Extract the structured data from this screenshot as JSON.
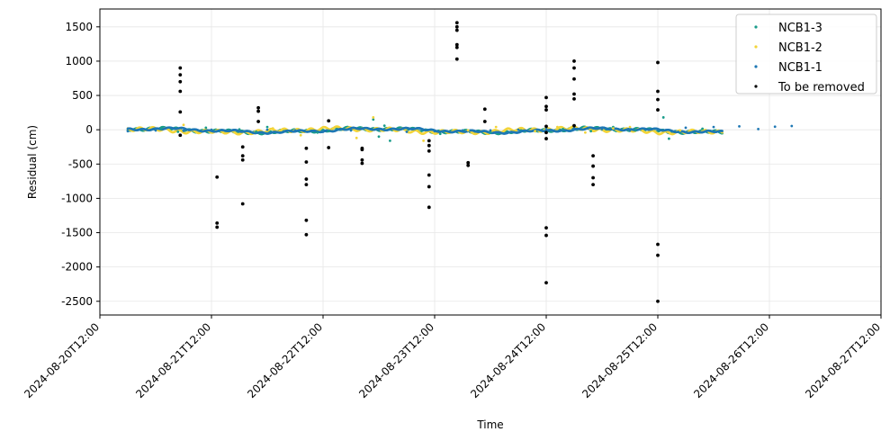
{
  "chart_data": {
    "type": "scatter",
    "title": "",
    "xlabel": "Time",
    "ylabel": "Residual (cm)",
    "x_ticks": [
      "2024-08-20T12:00",
      "2024-08-21T12:00",
      "2024-08-22T12:00",
      "2024-08-23T12:00",
      "2024-08-24T12:00",
      "2024-08-25T12:00",
      "2024-08-26T12:00",
      "2024-08-27T12:00"
    ],
    "y_ticks": [
      1500,
      1000,
      500,
      0,
      -500,
      -1000,
      -1500,
      -2000,
      -2500
    ],
    "xlim_days": [
      0,
      7
    ],
    "ylim": [
      -2700,
      1760
    ],
    "grid": true,
    "legend_position": "top-right",
    "colors": {
      "NCB1-3": "#1a9c8a",
      "NCB1-2": "#f2d43a",
      "NCB1-1": "#1f78b4",
      "To be removed": "#000000"
    },
    "series": [
      {
        "name": "NCB1-3",
        "values": [
          [
            0.55,
            15
          ],
          [
            0.7,
            -30
          ],
          [
            0.95,
            30
          ],
          [
            1.25,
            5
          ],
          [
            1.4,
            -30
          ],
          [
            1.5,
            40
          ],
          [
            1.95,
            -40
          ],
          [
            2.05,
            -20
          ],
          [
            2.45,
            150
          ],
          [
            2.5,
            -100
          ],
          [
            2.55,
            60
          ],
          [
            2.6,
            -160
          ],
          [
            3.05,
            -60
          ],
          [
            3.5,
            -40
          ],
          [
            3.9,
            -20
          ],
          [
            4.15,
            10
          ],
          [
            4.4,
            -20
          ],
          [
            4.6,
            40
          ],
          [
            4.8,
            -10
          ],
          [
            5.05,
            180
          ],
          [
            5.1,
            -130
          ],
          [
            5.4,
            15
          ]
        ]
      },
      {
        "name": "NCB1-2",
        "values": [
          [
            0.75,
            70
          ],
          [
            1.55,
            20
          ],
          [
            1.8,
            -80
          ],
          [
            2.3,
            -120
          ],
          [
            2.45,
            180
          ],
          [
            2.9,
            -160
          ],
          [
            3.3,
            -10
          ],
          [
            3.55,
            40
          ],
          [
            3.9,
            -20
          ],
          [
            4.1,
            40
          ],
          [
            4.35,
            -40
          ],
          [
            4.6,
            20
          ],
          [
            4.75,
            40
          ],
          [
            5.2,
            -10
          ]
        ]
      },
      {
        "name": "NCB1-1",
        "values": [
          [
            0.25,
            -20
          ],
          [
            0.5,
            -10
          ],
          [
            0.75,
            -15
          ],
          [
            1.0,
            0
          ],
          [
            1.25,
            -20
          ],
          [
            1.5,
            0
          ],
          [
            1.75,
            -10
          ],
          [
            2.0,
            -30
          ],
          [
            2.25,
            -10
          ],
          [
            2.5,
            0
          ],
          [
            2.75,
            -30
          ],
          [
            3.0,
            -20
          ],
          [
            3.25,
            -10
          ],
          [
            3.5,
            -10
          ],
          [
            3.75,
            0
          ],
          [
            4.0,
            10
          ],
          [
            4.25,
            20
          ],
          [
            4.5,
            10
          ],
          [
            4.75,
            -10
          ],
          [
            5.0,
            0
          ],
          [
            5.25,
            30
          ],
          [
            5.5,
            40
          ],
          [
            5.73,
            50
          ],
          [
            5.9,
            10
          ],
          [
            6.05,
            45
          ],
          [
            6.2,
            55
          ]
        ]
      },
      {
        "name": "To be removed",
        "values": [
          [
            0.72,
            900
          ],
          [
            0.72,
            800
          ],
          [
            0.72,
            700
          ],
          [
            0.72,
            560
          ],
          [
            0.72,
            260
          ],
          [
            0.72,
            -80
          ],
          [
            1.05,
            -690
          ],
          [
            1.05,
            -1360
          ],
          [
            1.05,
            -1420
          ],
          [
            1.28,
            -250
          ],
          [
            1.28,
            -380
          ],
          [
            1.28,
            -440
          ],
          [
            1.28,
            -1080
          ],
          [
            1.42,
            320
          ],
          [
            1.42,
            120
          ],
          [
            1.42,
            270
          ],
          [
            1.85,
            -270
          ],
          [
            1.85,
            -470
          ],
          [
            1.85,
            -720
          ],
          [
            1.85,
            -800
          ],
          [
            1.85,
            -1320
          ],
          [
            1.85,
            -1530
          ],
          [
            2.05,
            130
          ],
          [
            2.05,
            -260
          ],
          [
            2.35,
            -290
          ],
          [
            2.35,
            -440
          ],
          [
            2.35,
            -490
          ],
          [
            2.35,
            -270
          ],
          [
            2.95,
            -160
          ],
          [
            2.95,
            -230
          ],
          [
            2.95,
            -310
          ],
          [
            2.95,
            -660
          ],
          [
            2.95,
            -830
          ],
          [
            2.95,
            -1130
          ],
          [
            3.2,
            1560
          ],
          [
            3.2,
            1500
          ],
          [
            3.2,
            1450
          ],
          [
            3.2,
            1240
          ],
          [
            3.2,
            1200
          ],
          [
            3.2,
            1030
          ],
          [
            3.3,
            -480
          ],
          [
            3.3,
            -520
          ],
          [
            3.45,
            300
          ],
          [
            3.45,
            120
          ],
          [
            4.0,
            470
          ],
          [
            4.0,
            340
          ],
          [
            4.0,
            290
          ],
          [
            4.0,
            50
          ],
          [
            4.0,
            -40
          ],
          [
            4.0,
            -130
          ],
          [
            4.0,
            -1430
          ],
          [
            4.0,
            -1540
          ],
          [
            4.0,
            -2230
          ],
          [
            4.25,
            1000
          ],
          [
            4.25,
            900
          ],
          [
            4.25,
            740
          ],
          [
            4.25,
            520
          ],
          [
            4.25,
            450
          ],
          [
            4.25,
            60
          ],
          [
            4.42,
            -380
          ],
          [
            4.42,
            -530
          ],
          [
            4.42,
            -700
          ],
          [
            4.42,
            -800
          ],
          [
            5.0,
            980
          ],
          [
            5.0,
            560
          ],
          [
            5.0,
            440
          ],
          [
            5.0,
            290
          ],
          [
            5.0,
            -1670
          ],
          [
            5.0,
            -1830
          ],
          [
            5.0,
            -2500
          ]
        ]
      }
    ]
  }
}
